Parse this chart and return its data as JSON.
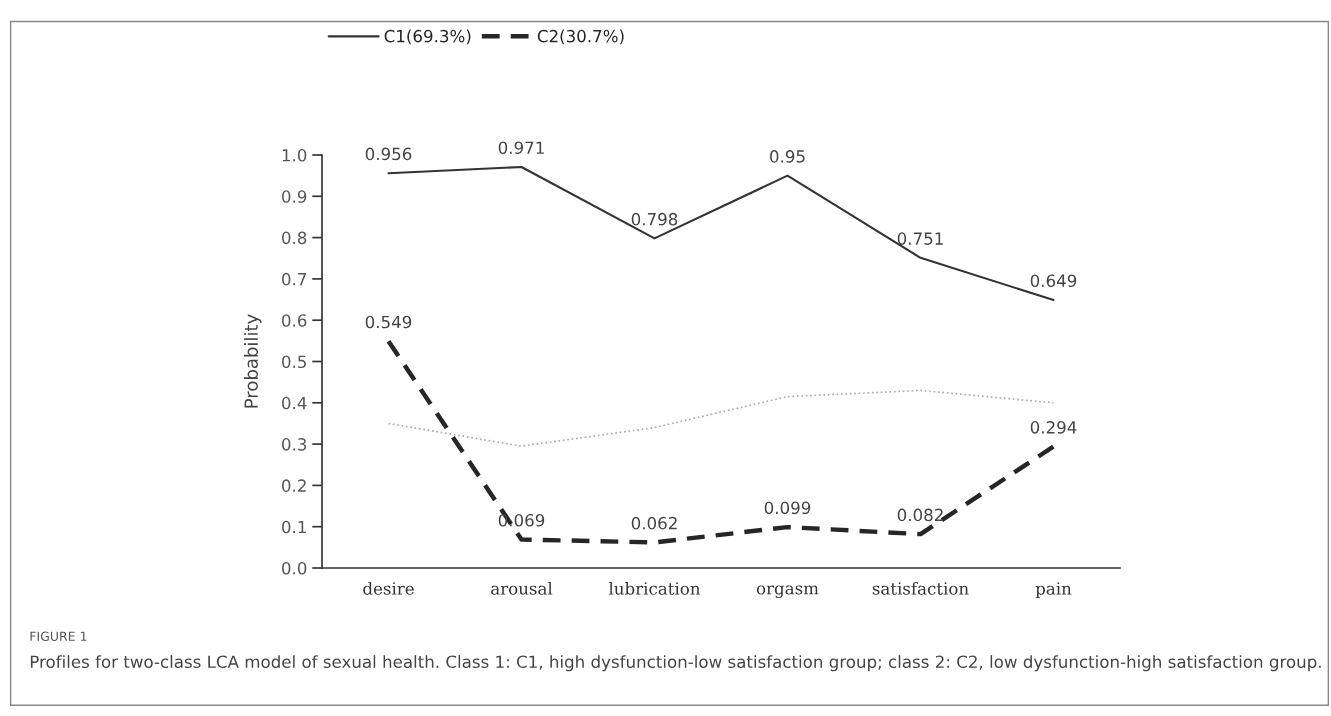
{
  "chart_data": {
    "type": "line",
    "ylabel": "Probability",
    "categories": [
      "desire",
      "arousal",
      "lubrication",
      "orgasm",
      "satisfaction",
      "pain"
    ],
    "series": [
      {
        "name": "C1(69.3%)",
        "color": "#333333",
        "line_style": "solid",
        "values": [
          0.956,
          0.971,
          0.798,
          0.95,
          0.751,
          0.649
        ],
        "value_labels": [
          "0.956",
          "0.971",
          "0.798",
          "0.95",
          "0.751",
          "0.649"
        ]
      },
      {
        "name": "C2(30.7%)",
        "color": "#262626",
        "line_style": "dashed",
        "values": [
          0.549,
          0.069,
          0.062,
          0.099,
          0.082,
          0.294
        ],
        "value_labels": [
          "0.549",
          "0.069",
          "0.062",
          "0.099",
          "0.082",
          "0.294"
        ]
      },
      {
        "color": "#aaaaaa",
        "line_style": "dotted",
        "values": [
          0.35,
          0.295,
          0.34,
          0.415,
          0.43,
          0.4
        ]
      }
    ],
    "ylim": [
      0,
      1.0
    ],
    "yticks": [
      {
        "value": 0,
        "label": "0.0"
      },
      {
        "value": 0.1,
        "label": "0.1"
      },
      {
        "value": 0.2,
        "label": "0.2"
      },
      {
        "value": 0.3,
        "label": "0.3"
      },
      {
        "value": 0.4,
        "label": "0.4"
      },
      {
        "value": 0.5,
        "label": "0.5"
      },
      {
        "value": 0.6,
        "label": "0.6"
      },
      {
        "value": 0.7,
        "label": "0.7"
      },
      {
        "value": 0.8,
        "label": "0.8"
      },
      {
        "value": 0.9,
        "label": "0.9"
      },
      {
        "value": 1.0,
        "label": "1.0"
      }
    ],
    "grid": false,
    "legend": "top left",
    "marker": "none",
    "annotations": [
      "FIGURE 1",
      "Profiles for two-class LCA model of sexual health. Class 1: C1, high dysfunction-low satisfaction group; class 2: C2, low dysfunction-high satisfaction group."
    ]
  }
}
